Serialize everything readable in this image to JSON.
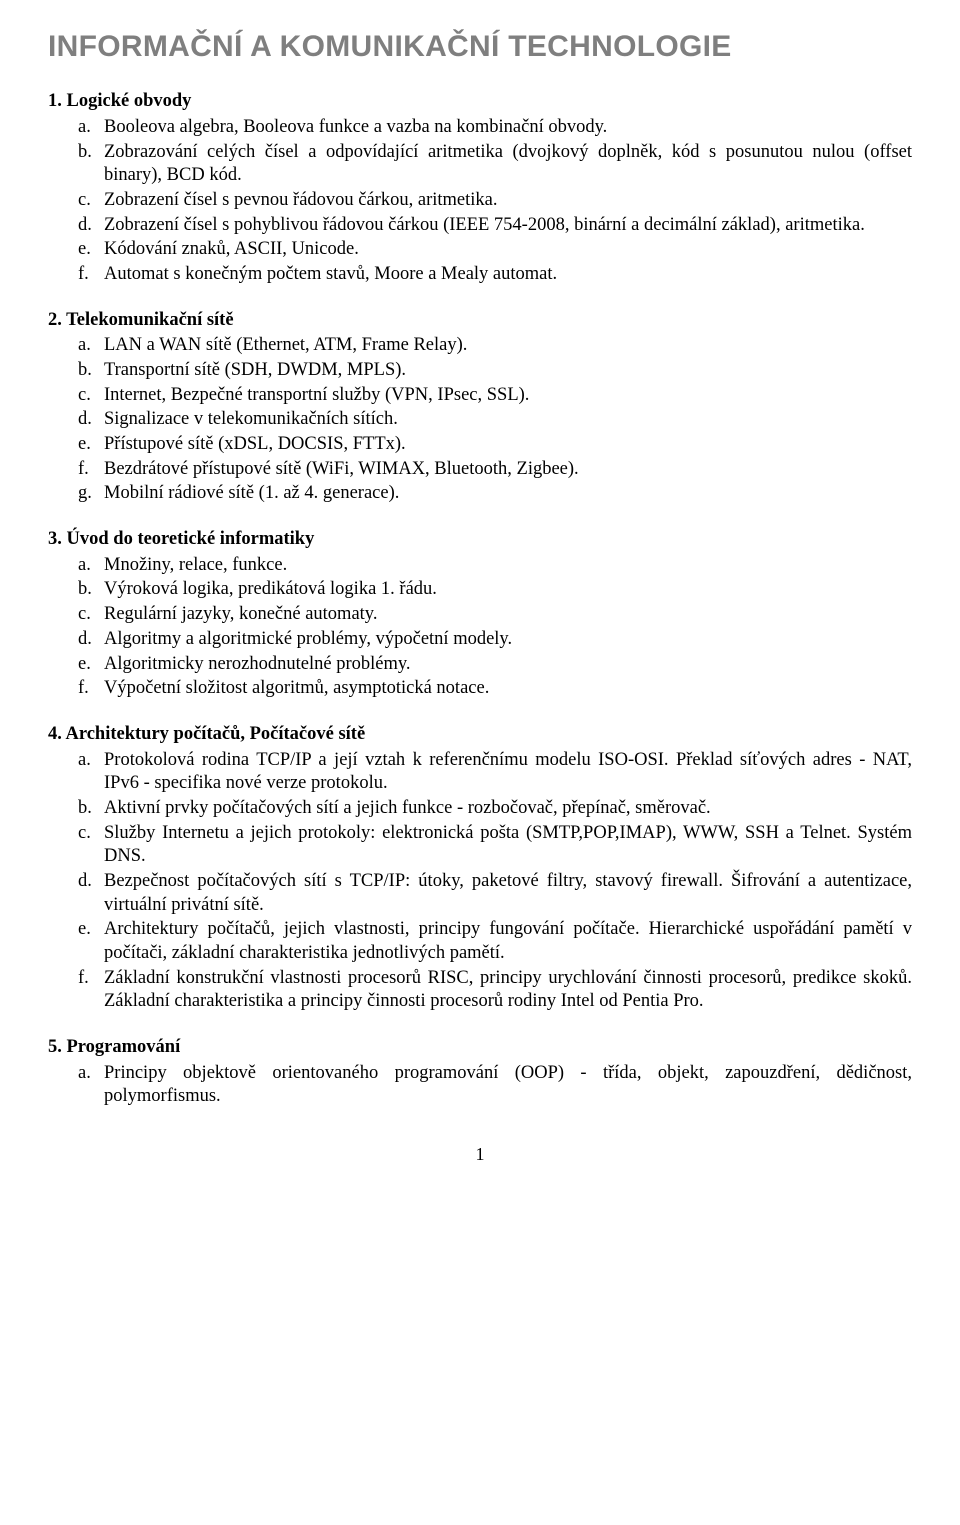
{
  "title": "INFORMAČNÍ A KOMUNIKAČNÍ TECHNOLOGIE",
  "page_number": "1",
  "sections": [
    {
      "heading": "1. Logické obvody",
      "items": [
        {
          "m": "a.",
          "t": "Booleova algebra, Booleova funkce a vazba na kombinační obvody."
        },
        {
          "m": "b.",
          "t": "Zobrazování celých čísel a odpovídající aritmetika (dvojkový doplněk, kód s posunutou nulou (offset binary), BCD kód."
        },
        {
          "m": "c.",
          "t": "Zobrazení čísel s pevnou řádovou čárkou, aritmetika."
        },
        {
          "m": "d.",
          "t": "Zobrazení čísel s pohyblivou řádovou čárkou (IEEE 754-2008, binární a decimální základ), aritmetika."
        },
        {
          "m": "e.",
          "t": "Kódování znaků, ASCII, Unicode."
        },
        {
          "m": "f.",
          "t": "Automat s konečným počtem stavů, Moore a Mealy automat."
        }
      ]
    },
    {
      "heading": "2. Telekomunikační sítě",
      "items": [
        {
          "m": "a.",
          "t": "LAN a WAN sítě (Ethernet, ATM, Frame Relay)."
        },
        {
          "m": "b.",
          "t": "Transportní sítě (SDH, DWDM, MPLS)."
        },
        {
          "m": "c.",
          "t": "Internet, Bezpečné transportní služby (VPN, IPsec, SSL)."
        },
        {
          "m": "d.",
          "t": "Signalizace v telekomunikačních sítích."
        },
        {
          "m": "e.",
          "t": "Přístupové sítě (xDSL, DOCSIS, FTTx)."
        },
        {
          "m": "f.",
          "t": "Bezdrátové přístupové sítě (WiFi, WIMAX, Bluetooth, Zigbee)."
        },
        {
          "m": "g.",
          "t": "Mobilní rádiové sítě (1. až 4. generace)."
        }
      ]
    },
    {
      "heading": "3. Úvod do teoretické informatiky",
      "items": [
        {
          "m": "a.",
          "t": "Množiny, relace, funkce."
        },
        {
          "m": "b.",
          "t": "Výroková logika, predikátová logika 1. řádu."
        },
        {
          "m": "c.",
          "t": "Regulární jazyky, konečné automaty."
        },
        {
          "m": "d.",
          "t": "Algoritmy a algoritmické problémy, výpočetní modely."
        },
        {
          "m": "e.",
          "t": "Algoritmicky nerozhodnutelné problémy."
        },
        {
          "m": "f.",
          "t": "Výpočetní složitost algoritmů, asymptotická notace."
        }
      ]
    },
    {
      "heading": "4. Architektury počítačů, Počítačové sítě",
      "items": [
        {
          "m": "a.",
          "t": "Protokolová rodina TCP/IP a její vztah k referenčnímu modelu ISO-OSI. Překlad síťových adres - NAT, IPv6 - specifika nové verze protokolu."
        },
        {
          "m": "b.",
          "t": "Aktivní prvky počítačových sítí a jejich funkce - rozbočovač, přepínač, směrovač."
        },
        {
          "m": "c.",
          "t": "Služby Internetu a jejich protokoly: elektronická pošta (SMTP,POP,IMAP), WWW, SSH a Telnet. Systém DNS."
        },
        {
          "m": "d.",
          "t": "Bezpečnost počítačových sítí s TCP/IP: útoky, paketové filtry, stavový firewall. Šifrování a autentizace, virtuální privátní sítě."
        },
        {
          "m": "e.",
          "t": "Architektury počítačů, jejich vlastnosti, principy fungování počítače. Hierarchické uspořádání pamětí v počítači, základní charakteristika jednotlivých pamětí."
        },
        {
          "m": "f.",
          "t": "Základní konstrukční vlastnosti procesorů RISC, principy urychlování činnosti procesorů, predikce skoků. Základní charakteristika a principy činnosti procesorů rodiny Intel od Pentia Pro."
        }
      ]
    },
    {
      "heading": "5. Programování",
      "items": [
        {
          "m": "a.",
          "t": "Principy objektově orientovaného programování (OOP) - třída, objekt, zapouzdření, dědičnost, polymorfismus."
        }
      ]
    }
  ]
}
